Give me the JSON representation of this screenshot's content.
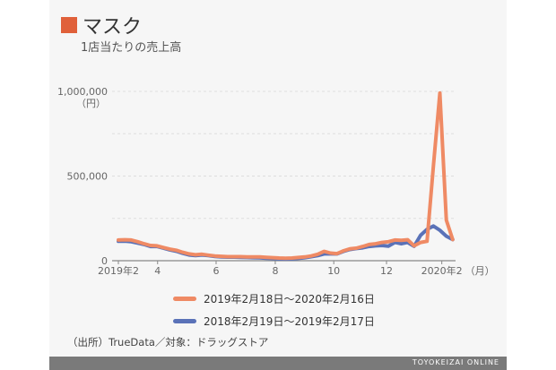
{
  "title": "マスク",
  "subtitle": "1店当たりの売上高",
  "title_color": "#e0603a",
  "source": "（出所）TrueData／対象：ドラッグストア",
  "footer": "TOYOKEIZAI ONLINE",
  "chart_data": {
    "type": "line",
    "ylim": [
      0,
      1000000
    ],
    "yticks": [
      {
        "v": 0,
        "label": "0"
      },
      {
        "v": 500000,
        "label": "500,000"
      },
      {
        "v": 1000000,
        "label": "1,000,000"
      }
    ],
    "yunit": "（円）",
    "grid_values": [
      250000,
      500000,
      750000,
      1000000
    ],
    "xticks": [
      {
        "i": 0,
        "label": "2019年2"
      },
      {
        "i": 6.1,
        "label": "4"
      },
      {
        "i": 15.2,
        "label": "6"
      },
      {
        "i": 24.4,
        "label": "8"
      },
      {
        "i": 33.5,
        "label": "10"
      },
      {
        "i": 41.7,
        "label": "12"
      },
      {
        "i": 50.3,
        "label": "2020年2"
      }
    ],
    "xunit": "（月）",
    "series": [
      {
        "name": "2019年2月18日～2020年2月16日",
        "color": "#ef8a64",
        "values": [
          122000,
          124000,
          122000,
          112000,
          100000,
          90000,
          88000,
          78000,
          68000,
          62000,
          50000,
          40000,
          35000,
          38000,
          33000,
          28000,
          26000,
          24000,
          24000,
          24000,
          23000,
          23000,
          22000,
          20000,
          18000,
          16000,
          15000,
          16000,
          19000,
          22000,
          28000,
          38000,
          55000,
          45000,
          42000,
          58000,
          70000,
          74000,
          84000,
          96000,
          100000,
          108000,
          112000,
          122000,
          120000,
          124000,
          88000,
          108000,
          115000,
          560000,
          990000,
          240000,
          125000
        ]
      },
      {
        "name": "2018年2月19日～2019年2月17日",
        "color": "#5a72b8",
        "values": [
          115000,
          116000,
          112000,
          104000,
          96000,
          84000,
          84000,
          74000,
          64000,
          56000,
          44000,
          34000,
          30000,
          34000,
          30000,
          25000,
          23000,
          21000,
          21000,
          20000,
          19000,
          18000,
          17000,
          15000,
          13000,
          11000,
          10000,
          11000,
          14000,
          18000,
          24000,
          30000,
          40000,
          40000,
          40000,
          55000,
          66000,
          72000,
          76000,
          84000,
          88000,
          90000,
          86000,
          108000,
          100000,
          108000,
          85000,
          150000,
          185000,
          205000,
          180000,
          145000,
          125000
        ]
      }
    ]
  }
}
